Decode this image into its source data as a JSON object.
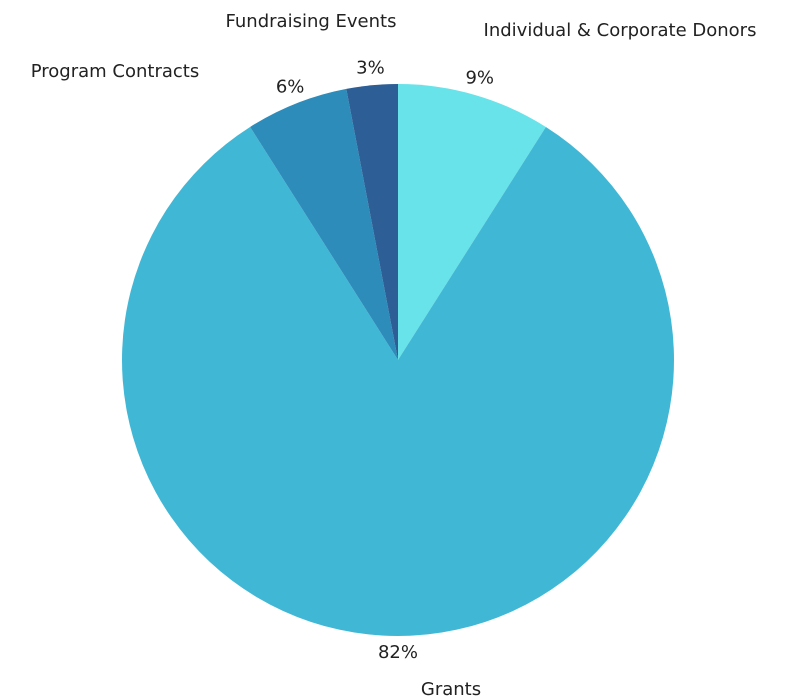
{
  "chart_data": {
    "type": "pie",
    "categories": [
      "Individual & Corporate Donors",
      "Grants",
      "Program Contracts",
      "Fundraising Events"
    ],
    "values": [
      9,
      82,
      6,
      3
    ],
    "value_labels": [
      "9%",
      "82%",
      "6%",
      "3%"
    ],
    "colors": [
      "#68e3e9",
      "#41b7d6",
      "#2e8cba",
      "#2d5e96"
    ]
  }
}
